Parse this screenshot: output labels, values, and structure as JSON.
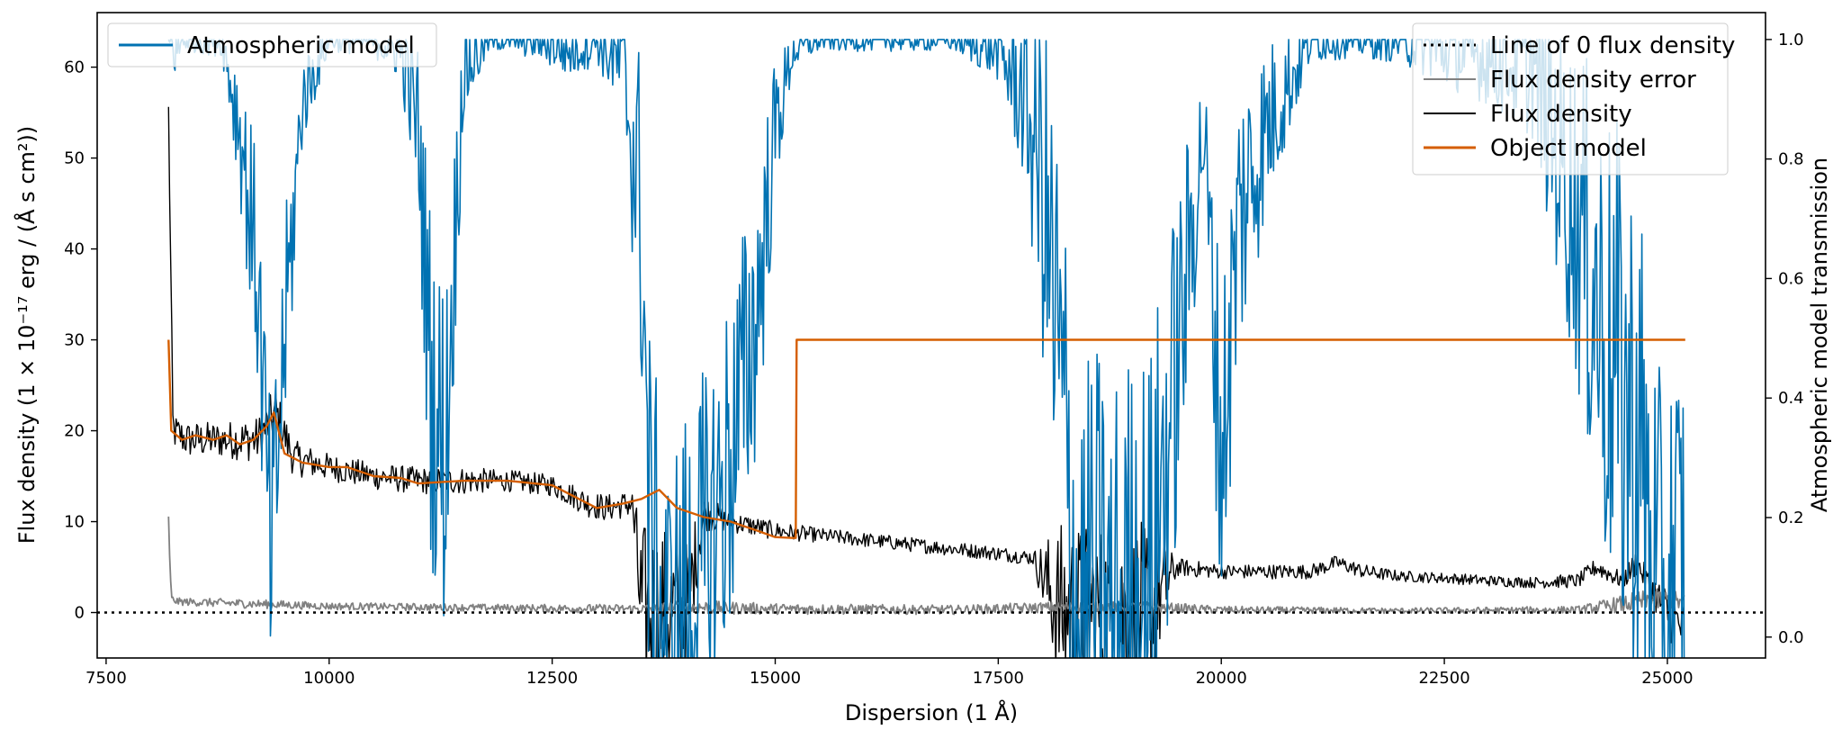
{
  "chart_data": {
    "type": "line",
    "title": "",
    "xlabel": "Dispersion (1 Å)",
    "ylabel_left": "Flux density (1 × 10⁻¹⁷ erg / (Å s cm²))",
    "ylabel_right": "Atmospheric model transmission",
    "xlim": [
      7400,
      26100
    ],
    "ylim_left": [
      -5,
      66
    ],
    "ylim_right": [
      -0.035,
      1.045
    ],
    "x_ticks": [
      7500,
      10000,
      12500,
      15000,
      17500,
      20000,
      22500,
      25000
    ],
    "x_tick_labels": [
      "7500",
      "10000",
      "12500",
      "15000",
      "17500",
      "20000",
      "22500",
      "25000"
    ],
    "y_ticks_left": [
      0,
      10,
      20,
      30,
      40,
      50,
      60
    ],
    "y_tick_labels_left": [
      "0",
      "10",
      "20",
      "30",
      "40",
      "50",
      "60"
    ],
    "y_ticks_right": [
      0.0,
      0.2,
      0.4,
      0.6,
      0.8,
      1.0
    ],
    "y_tick_labels_right": [
      "0.0",
      "0.2",
      "0.4",
      "0.6",
      "0.8",
      "1.0"
    ],
    "grid": false,
    "legends": [
      {
        "placement": "top-left",
        "entries": [
          {
            "label": "Atmospheric model",
            "color": "#0072b2",
            "style": "solid"
          }
        ]
      },
      {
        "placement": "top-right",
        "entries": [
          {
            "label": "Line of 0 flux density",
            "color": "#000000",
            "style": "dotted"
          },
          {
            "label": "Flux density error",
            "color": "#808080",
            "style": "solid"
          },
          {
            "label": "Flux density",
            "color": "#000000",
            "style": "solid"
          },
          {
            "label": "Object model",
            "color": "#d55e00",
            "style": "solid"
          }
        ]
      }
    ],
    "series": [
      {
        "name": "Atmospheric model",
        "axis": "right",
        "color": "#0072b2",
        "x": [
          8200,
          8260,
          8400,
          8800,
          9000,
          9200,
          9350,
          9500,
          9700,
          10000,
          10500,
          10800,
          11000,
          11150,
          11300,
          11500,
          11800,
          12000,
          12400,
          12700,
          13000,
          13300,
          13500,
          13600,
          13800,
          14000,
          14200,
          14500,
          14800,
          15000,
          15200,
          15500,
          16000,
          16500,
          17000,
          17500,
          17800,
          18000,
          18200,
          18400,
          18600,
          18800,
          19000,
          19200,
          19500,
          19800,
          20000,
          20200,
          20500,
          21000,
          21500,
          22000,
          22500,
          23000,
          23500,
          24000,
          24300,
          24500,
          24700,
          24900,
          25100,
          25200
        ],
        "y": [
          1.0,
          0.98,
          1.0,
          1.0,
          0.85,
          0.6,
          0.1,
          0.5,
          0.9,
          1.0,
          1.0,
          0.98,
          0.85,
          0.4,
          0.3,
          0.95,
          1.0,
          1.0,
          1.0,
          0.98,
          1.0,
          0.95,
          0.7,
          0.1,
          0.0,
          0.05,
          0.1,
          0.3,
          0.55,
          0.85,
          0.98,
          1.0,
          1.0,
          1.0,
          1.0,
          0.98,
          0.9,
          0.75,
          0.4,
          0.0,
          0.05,
          0.0,
          0.05,
          0.1,
          0.45,
          0.85,
          0.3,
          0.7,
          0.85,
          1.0,
          1.0,
          1.0,
          0.98,
          0.97,
          0.95,
          0.7,
          0.5,
          0.4,
          0.3,
          0.0,
          0.05,
          0.1
        ],
        "noise_amplitude": [
          0.02,
          0.05,
          0.02,
          0.03,
          0.12,
          0.2,
          0.25,
          0.2,
          0.08,
          0.02,
          0.03,
          0.05,
          0.15,
          0.3,
          0.3,
          0.1,
          0.02,
          0.02,
          0.04,
          0.05,
          0.04,
          0.1,
          0.3,
          0.4,
          0.3,
          0.35,
          0.35,
          0.3,
          0.25,
          0.12,
          0.03,
          0.02,
          0.02,
          0.02,
          0.02,
          0.05,
          0.15,
          0.3,
          0.45,
          0.45,
          0.45,
          0.45,
          0.45,
          0.4,
          0.3,
          0.12,
          0.3,
          0.25,
          0.15,
          0.04,
          0.03,
          0.04,
          0.06,
          0.08,
          0.12,
          0.3,
          0.4,
          0.45,
          0.45,
          0.45,
          0.45,
          0.45
        ]
      },
      {
        "name": "Flux density",
        "axis": "left",
        "color": "#000000",
        "x": [
          8200,
          8250,
          8400,
          8800,
          9200,
          9400,
          9600,
          10000,
          10500,
          11000,
          11500,
          12000,
          12500,
          12900,
          13100,
          13400,
          13500,
          13700,
          14000,
          14200,
          14500,
          15000,
          15500,
          16000,
          16500,
          17000,
          17500,
          17900,
          18200,
          18500,
          18800,
          19200,
          19500,
          20000,
          20500,
          21000,
          21300,
          21600,
          22000,
          22500,
          23000,
          23500,
          24000,
          24200,
          24500,
          24650,
          24800,
          25000,
          25200
        ],
        "y": [
          55,
          20,
          19,
          19,
          19,
          22,
          17,
          16,
          15,
          14.5,
          14.5,
          14.5,
          14,
          12,
          11.5,
          12,
          0,
          0,
          0,
          11,
          10,
          9,
          8.5,
          8,
          7.5,
          7,
          6.5,
          6,
          0,
          0,
          0,
          0,
          5,
          4.5,
          4.5,
          4.5,
          5.5,
          4.5,
          4,
          3.8,
          3.5,
          3.3,
          3.5,
          5,
          3.5,
          5.5,
          3,
          0,
          -2
        ],
        "noise_amplitude": [
          2,
          2,
          2,
          2,
          2.5,
          3,
          2,
          1.5,
          1.5,
          1.5,
          1.5,
          1.2,
          1.2,
          1.5,
          1.5,
          1.5,
          10,
          10,
          8,
          2,
          1.2,
          1,
          0.8,
          0.8,
          0.8,
          0.8,
          0.8,
          0.8,
          10,
          10,
          10,
          10,
          1,
          0.8,
          0.8,
          0.8,
          0.8,
          0.8,
          0.6,
          0.6,
          0.6,
          0.6,
          0.8,
          1,
          1,
          1.5,
          1.5,
          3,
          3
        ]
      },
      {
        "name": "Flux density error",
        "axis": "left",
        "color": "#808080",
        "x": [
          8200,
          8230,
          8300,
          9000,
          10000,
          12000,
          13500,
          14000,
          15000,
          17000,
          18200,
          19200,
          20000,
          22000,
          24000,
          24700,
          25000,
          25200
        ],
        "y": [
          10,
          1.5,
          1.2,
          1.0,
          0.7,
          0.5,
          0.4,
          0.6,
          0.4,
          0.3,
          0.6,
          0.6,
          0.3,
          0.2,
          0.3,
          1.2,
          1.5,
          1.0
        ],
        "noise_amplitude": [
          1,
          0.4,
          0.4,
          0.5,
          0.4,
          0.4,
          0.5,
          0.8,
          0.6,
          0.5,
          0.6,
          0.6,
          0.4,
          0.3,
          0.4,
          1.2,
          1.2,
          1.0
        ]
      },
      {
        "name": "Object model",
        "axis": "left",
        "color": "#d55e00",
        "x": [
          8200,
          8230,
          8350,
          8500,
          8700,
          8850,
          9000,
          9150,
          9300,
          9380,
          9500,
          9700,
          10000,
          10200,
          10500,
          10800,
          11000,
          11500,
          12000,
          12500,
          12800,
          13000,
          13300,
          13500,
          13700,
          13900,
          14200,
          14500,
          14800,
          15000,
          15200,
          15230,
          15240,
          25200
        ],
        "y": [
          30,
          20,
          19,
          19.5,
          19,
          19.5,
          18.5,
          19,
          20.5,
          22,
          17.5,
          16.5,
          16,
          16,
          15,
          14.8,
          14.2,
          14.5,
          14.5,
          14,
          12.5,
          11.5,
          12,
          12.5,
          13.5,
          11.5,
          10.5,
          10,
          9,
          8.3,
          8.2,
          8.2,
          30,
          30
        ]
      },
      {
        "name": "Line of 0 flux density",
        "axis": "left",
        "color": "#000000",
        "x": [
          7400,
          26100
        ],
        "y": [
          0,
          0
        ]
      }
    ]
  }
}
